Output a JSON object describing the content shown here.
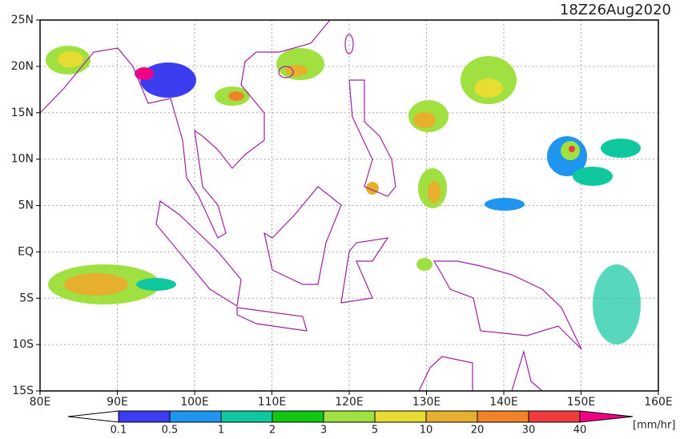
{
  "title": "18Z26Aug2020",
  "lat_labels": [
    "25N",
    "20N",
    "15N",
    "10N",
    "5N",
    "EQ",
    "5S",
    "10S",
    "15S"
  ],
  "lon_labels": [
    "80E",
    "90E",
    "100E",
    "110E",
    "120E",
    "130E",
    "140E",
    "150E",
    "160E"
  ],
  "colorbar": {
    "labels": [
      "0.1",
      "0.5",
      "1",
      "2",
      "3",
      "5",
      "10",
      "20",
      "30",
      "40"
    ],
    "colors": [
      "#ffffff",
      "#3c3cf0",
      "#1e96f0",
      "#10c8a0",
      "#10c810",
      "#a0e040",
      "#e6dc32",
      "#e6af2d",
      "#f08228",
      "#f03c3c",
      "#f00082"
    ],
    "unit": "[mm/hr]"
  }
}
